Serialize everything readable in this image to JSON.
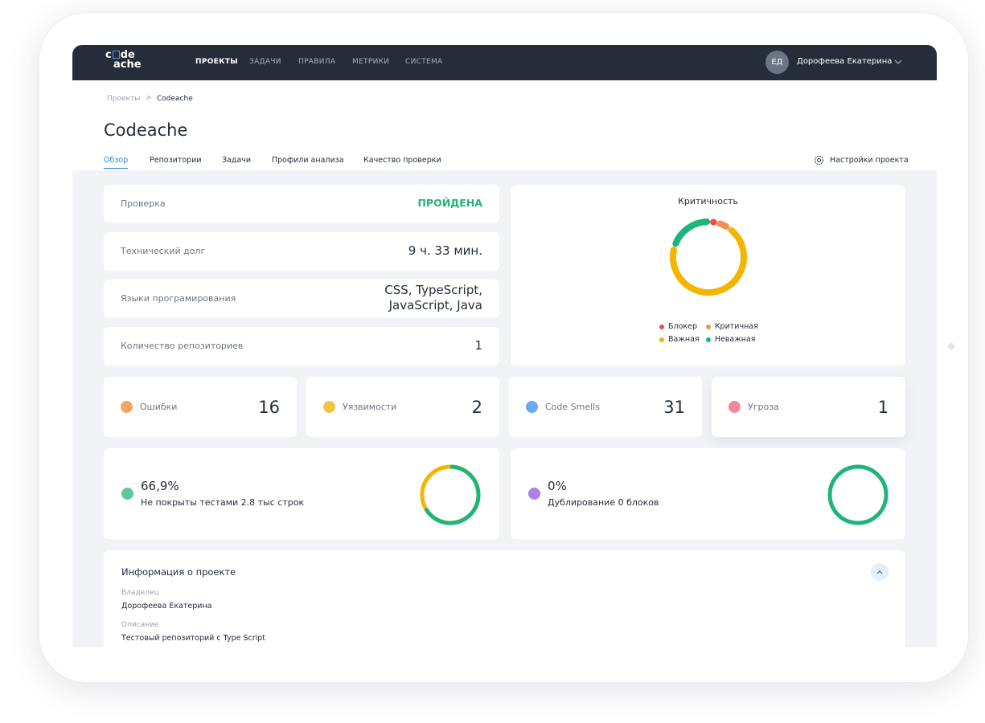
{
  "logo": [
    "c",
    "de",
    "ache"
  ],
  "nav": [
    "ПРОЕКТЫ",
    "ЗАДАЧИ",
    "ПРАВИЛА",
    "МЕТРИКИ",
    "СИСТЕМА"
  ],
  "user": {
    "initials": "ЕД",
    "name": "Дорофеева Екатерина"
  },
  "breadcrumb": [
    "Проекты",
    "Codeache"
  ],
  "page_title": "Codeache",
  "tabs": [
    "Обзор",
    "Репозитории",
    "Задачи",
    "Профили анализа",
    "Качество проверки"
  ],
  "settings": "Настройки проекта",
  "summary": [
    {
      "label": "Проверка",
      "value": "ПРОЙДЕНА"
    },
    {
      "label": "Технический долг",
      "value": "9 ч. 33 мин."
    },
    {
      "label": "Языки програмирования",
      "value": "CSS, TypeScript, JavaScript, Java"
    },
    {
      "label": "Количество репозиториев",
      "value": "1"
    }
  ],
  "criticality": {
    "title": "Критичность",
    "series": [
      {
        "name": "Блокер",
        "color": "#ef4b4b",
        "value": 3
      },
      {
        "name": "Критичная",
        "color": "#f39150",
        "value": 6
      },
      {
        "name": "Важная",
        "color": "#f5b400",
        "value": 70
      },
      {
        "name": "Неважная",
        "color": "#1fb57a",
        "value": 21
      }
    ]
  },
  "issues": [
    {
      "label": "Ошибки",
      "value": "16"
    },
    {
      "label": "Уязвимости",
      "value": "2"
    },
    {
      "label": "Code Smells",
      "value": "31"
    },
    {
      "label": "Угроза",
      "value": "1"
    }
  ],
  "coverage": {
    "value": 66.9,
    "label": "66,9%",
    "caption": "Не покрыты тестами 2.8 тыс строк",
    "value_color": "#1fb57a",
    "track_color": "#f5b400"
  },
  "duplication": {
    "value": 0,
    "label": "0%",
    "caption": "Дублирование 0 блоков",
    "value_color": "#f5b400",
    "track_color": "#1fb57a"
  },
  "project_info": {
    "title": "Информация о проекте",
    "fields": [
      {
        "label": "Владелец",
        "value": "Дорофеева Екатерина"
      },
      {
        "label": "Описание",
        "value": "Тестовый репозиторий с Type Script"
      }
    ]
  }
}
